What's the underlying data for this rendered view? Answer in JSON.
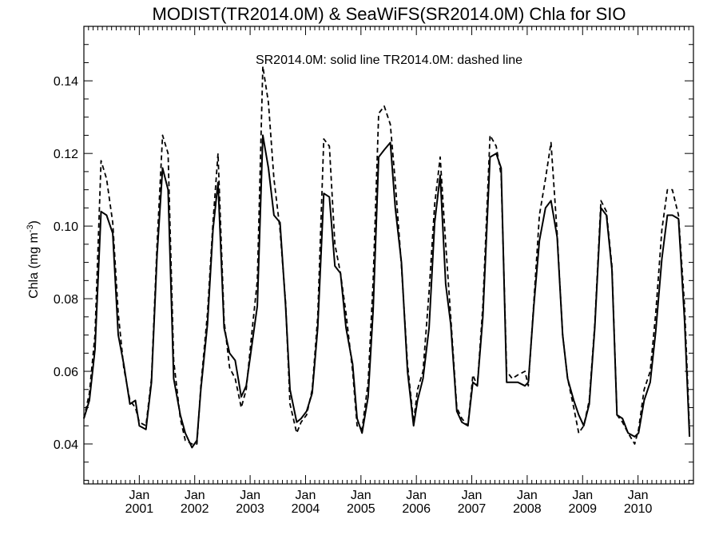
{
  "chart_data": {
    "type": "line",
    "title": "MODIST(TR2014.0M) & SeaWiFS(SR2014.0M)  Chla for SIO",
    "legend_text": "SR2014.0M: solid line   TR2014.0M: dashed line",
    "ylabel": "Chla (mg m",
    "ylabel_exponent": "-3",
    "ylabel_close": ")",
    "ylim": [
      0.029,
      0.155
    ],
    "xlim": [
      2000.0,
      2011.0
    ],
    "y_ticks": [
      0.04,
      0.06,
      0.08,
      0.1,
      0.12,
      0.14
    ],
    "y_tick_labels": [
      "0.04",
      "0.06",
      "0.08",
      "0.10",
      "0.12",
      "0.14"
    ],
    "x_ticks": [
      {
        "month": "Jan",
        "year": "2001",
        "x": 2001.0
      },
      {
        "month": "Jan",
        "year": "2002",
        "x": 2002.0
      },
      {
        "month": "Jan",
        "year": "2003",
        "x": 2003.0
      },
      {
        "month": "Jan",
        "year": "2004",
        "x": 2004.0
      },
      {
        "month": "Jan",
        "year": "2005",
        "x": 2005.0
      },
      {
        "month": "Jan",
        "year": "2006",
        "x": 2006.0
      },
      {
        "month": "Jan",
        "year": "2007",
        "x": 2007.0
      },
      {
        "month": "Jan",
        "year": "2008",
        "x": 2008.0
      },
      {
        "month": "Jan",
        "year": "2009",
        "x": 2009.0
      },
      {
        "month": "Jan",
        "year": "2010",
        "x": 2010.0
      }
    ],
    "grid": false,
    "series": [
      {
        "name": "SR2014.0M",
        "style": "solid",
        "x": [
          2000.0,
          2000.1,
          2000.2,
          2000.31,
          2000.41,
          2000.52,
          2000.62,
          2000.72,
          2000.83,
          2000.93,
          2001.0,
          2001.12,
          2001.22,
          2001.32,
          2001.42,
          2001.52,
          2001.62,
          2001.74,
          2001.83,
          2001.95,
          2002.04,
          2002.11,
          2002.23,
          2002.33,
          2002.42,
          2002.53,
          2002.63,
          2002.73,
          2002.84,
          2002.93,
          2003.02,
          2003.13,
          2003.23,
          2003.33,
          2003.43,
          2003.54,
          2003.64,
          2003.72,
          2003.84,
          2003.92,
          2004.02,
          2004.12,
          2004.22,
          2004.33,
          2004.43,
          2004.53,
          2004.63,
          2004.73,
          2004.85,
          2004.93,
          2005.02,
          2005.13,
          2005.22,
          2005.32,
          2005.42,
          2005.53,
          2005.62,
          2005.73,
          2005.84,
          2005.95,
          2006.02,
          2006.12,
          2006.23,
          2006.33,
          2006.43,
          2006.53,
          2006.62,
          2006.73,
          2006.82,
          2006.93,
          2007.02,
          2007.1,
          2007.2,
          2007.33,
          2007.44,
          2007.53,
          2007.63,
          2007.73,
          2007.83,
          2007.96,
          2008.02,
          2008.12,
          2008.22,
          2008.33,
          2008.43,
          2008.54,
          2008.64,
          2008.73,
          2008.84,
          2008.93,
          2009.02,
          2009.12,
          2009.22,
          2009.33,
          2009.43,
          2009.53,
          2009.62,
          2009.72,
          2009.82,
          2009.94,
          2010.01,
          2010.11,
          2010.22,
          2010.32,
          2010.43,
          2010.53,
          2010.62,
          2010.73,
          2010.84,
          2010.93
        ],
        "values": [
          0.047,
          0.052,
          0.066,
          0.104,
          0.103,
          0.098,
          0.07,
          0.062,
          0.051,
          0.052,
          0.045,
          0.044,
          0.057,
          0.092,
          0.116,
          0.11,
          0.058,
          0.048,
          0.043,
          0.039,
          0.041,
          0.055,
          0.073,
          0.099,
          0.112,
          0.072,
          0.065,
          0.063,
          0.053,
          0.056,
          0.066,
          0.078,
          0.125,
          0.116,
          0.103,
          0.101,
          0.078,
          0.055,
          0.046,
          0.047,
          0.049,
          0.054,
          0.072,
          0.109,
          0.108,
          0.089,
          0.087,
          0.072,
          0.062,
          0.047,
          0.043,
          0.053,
          0.077,
          0.119,
          0.121,
          0.123,
          0.105,
          0.09,
          0.06,
          0.045,
          0.052,
          0.058,
          0.072,
          0.101,
          0.114,
          0.084,
          0.073,
          0.049,
          0.046,
          0.045,
          0.057,
          0.056,
          0.075,
          0.119,
          0.12,
          0.116,
          0.057,
          0.057,
          0.057,
          0.056,
          0.057,
          0.078,
          0.096,
          0.105,
          0.107,
          0.097,
          0.07,
          0.058,
          0.052,
          0.048,
          0.045,
          0.051,
          0.072,
          0.105,
          0.103,
          0.088,
          0.048,
          0.047,
          0.043,
          0.042,
          0.043,
          0.052,
          0.057,
          0.071,
          0.091,
          0.103,
          0.103,
          0.102,
          0.074,
          0.042
        ]
      },
      {
        "name": "TR2014.0M",
        "style": "dashed",
        "x": [
          2000.0,
          2000.1,
          2000.2,
          2000.31,
          2000.41,
          2000.52,
          2000.62,
          2000.72,
          2000.83,
          2000.93,
          2001.0,
          2001.12,
          2001.22,
          2001.32,
          2001.42,
          2001.52,
          2001.62,
          2001.74,
          2001.83,
          2001.95,
          2002.04,
          2002.11,
          2002.23,
          2002.33,
          2002.42,
          2002.53,
          2002.63,
          2002.73,
          2002.84,
          2002.93,
          2003.02,
          2003.13,
          2003.23,
          2003.33,
          2003.43,
          2003.54,
          2003.64,
          2003.72,
          2003.84,
          2003.92,
          2004.02,
          2004.12,
          2004.22,
          2004.33,
          2004.43,
          2004.53,
          2004.63,
          2004.73,
          2004.85,
          2004.93,
          2005.02,
          2005.13,
          2005.22,
          2005.32,
          2005.42,
          2005.53,
          2005.62,
          2005.73,
          2005.84,
          2005.95,
          2006.02,
          2006.12,
          2006.23,
          2006.33,
          2006.43,
          2006.53,
          2006.62,
          2006.73,
          2006.82,
          2006.93,
          2007.02,
          2007.1,
          2007.2,
          2007.33,
          2007.44,
          2007.53,
          2007.63,
          2007.73,
          2007.83,
          2007.96,
          2008.02,
          2008.12,
          2008.22,
          2008.33,
          2008.43,
          2008.54,
          2008.64,
          2008.73,
          2008.84,
          2008.93,
          2009.02,
          2009.12,
          2009.22,
          2009.33,
          2009.43,
          2009.53,
          2009.62,
          2009.72,
          2009.82,
          2009.94,
          2010.01,
          2010.11,
          2010.22,
          2010.32,
          2010.43,
          2010.53,
          2010.62,
          2010.73,
          2010.84,
          2010.93
        ],
        "values": [
          0.047,
          0.054,
          0.07,
          0.118,
          0.113,
          0.101,
          0.076,
          0.061,
          0.052,
          0.05,
          0.046,
          0.045,
          0.058,
          0.095,
          0.125,
          0.12,
          0.063,
          0.047,
          0.041,
          0.04,
          0.04,
          0.056,
          0.076,
          0.101,
          0.12,
          0.074,
          0.061,
          0.058,
          0.05,
          0.055,
          0.069,
          0.085,
          0.144,
          0.134,
          0.113,
          0.099,
          0.079,
          0.051,
          0.043,
          0.046,
          0.048,
          0.055,
          0.075,
          0.124,
          0.122,
          0.095,
          0.087,
          0.076,
          0.06,
          0.045,
          0.044,
          0.057,
          0.085,
          0.131,
          0.133,
          0.128,
          0.112,
          0.089,
          0.062,
          0.046,
          0.055,
          0.06,
          0.082,
          0.106,
          0.119,
          0.095,
          0.075,
          0.05,
          0.047,
          0.045,
          0.059,
          0.056,
          0.078,
          0.125,
          0.122,
          0.114,
          0.06,
          0.058,
          0.059,
          0.06,
          0.056,
          0.079,
          0.103,
          0.113,
          0.123,
          0.098,
          0.07,
          0.058,
          0.05,
          0.043,
          0.045,
          0.052,
          0.073,
          0.107,
          0.104,
          0.089,
          0.048,
          0.046,
          0.043,
          0.04,
          0.044,
          0.055,
          0.06,
          0.076,
          0.099,
          0.11,
          0.11,
          0.103,
          0.078,
          0.044
        ]
      }
    ]
  }
}
